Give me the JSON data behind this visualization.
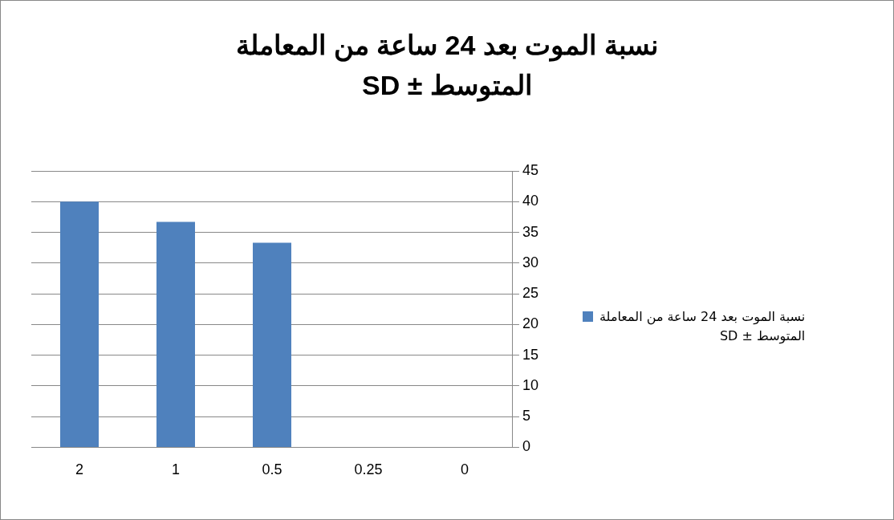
{
  "chart_data": {
    "type": "bar",
    "title": "نسبة الموت بعد 24 ساعة من المعاملة\nالمتوسط ± SD",
    "categories": [
      "2",
      "1",
      "0.5",
      "0.25",
      "0"
    ],
    "series": [
      {
        "name": "نسبة الموت بعد 24 ساعة من المعاملة\nالمتوسط ± SD",
        "color": "#4f81bd",
        "values": [
          40,
          36.7,
          33.3,
          0,
          0
        ]
      }
    ],
    "ylim": [
      0,
      45
    ],
    "yticks": [
      0,
      5,
      10,
      15,
      20,
      25,
      30,
      35,
      40,
      45
    ],
    "grid": "y",
    "legend": "right"
  }
}
